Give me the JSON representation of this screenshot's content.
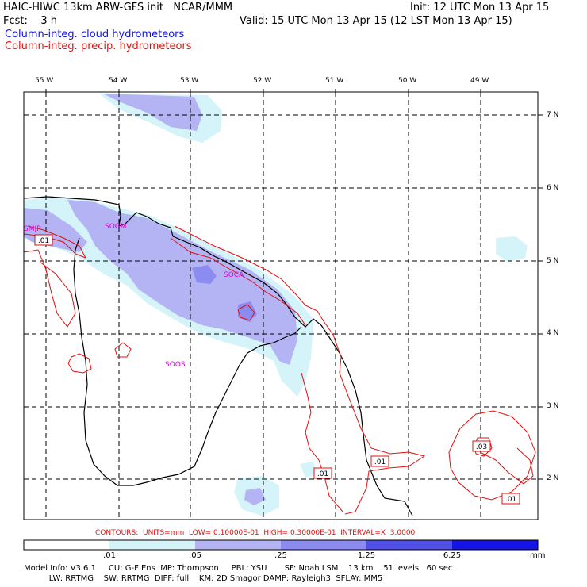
{
  "header": {
    "line1_left": "HAIC-HIWC 13km ARW-GFS init   NCAR/MMM",
    "line1_right": "Init: 12 UTC Mon 13 Apr 15",
    "line2_left": "Fcst:    3 h",
    "line2_right": "Valid: 15 UTC Mon 13 Apr 15 (12 LST Mon 13 Apr 15)",
    "field1": "Column-integ. cloud hydrometeors",
    "field2": "Column-integ. precip. hydrometeors"
  },
  "axes": {
    "lon_labels": [
      "55 W",
      "54 W",
      "53 W",
      "52 W",
      "51 W",
      "50 W",
      "49 W"
    ],
    "lat_labels": [
      "7 N",
      "6 N",
      "5 N",
      "4 N",
      "3 N",
      "2 N"
    ]
  },
  "stations": [
    "SMJP",
    "SOGM",
    "SOCA",
    "SOOS"
  ],
  "contour_labels": [
    ".01",
    ".01",
    ".01",
    ".03",
    ".01",
    ".01"
  ],
  "contours_line": "CONTOURS:  UNITS=mm  LOW= 0.10000E-01  HIGH= 0.30000E-01  INTERVAL=X  3.0000",
  "colorbar": {
    "labels": [
      ".01",
      ".05",
      ".25",
      "1.25",
      "6.25"
    ],
    "unit": "mm",
    "colors": [
      "#ffffff",
      "#d4f4fa",
      "#b4b4f4",
      "#8c8cf0",
      "#5050e6",
      "#1414e6"
    ]
  },
  "model_info": {
    "line1": "Model Info: V3.6.1     CU: G-F Ens  MP: Thompson     PBL: YSU       SF: Noah LSM    13 km    51 levels   60 sec",
    "line2": "          LW: RRTMG    SW: RRTMG  DIFF: full    KM: 2D Smagor DAMP: Rayleigh3  SFLAY: MM5"
  },
  "colors": {
    "cloud_fill_light": "#d4f4fa",
    "cloud_fill_mid": "#b4b4f4",
    "cloud_fill_dark": "#8c8cf0",
    "cloud_fill_darkest": "#5050e6",
    "precip_contour": "#e01010",
    "station": "#dd00dd"
  }
}
